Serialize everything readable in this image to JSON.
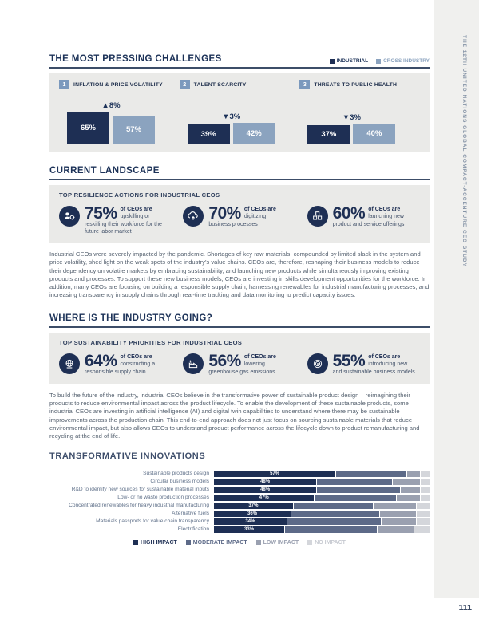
{
  "page": {
    "side_label": "THE 12TH UNITED NATIONS GLOBAL COMPACT-ACCENTURE CEO STUDY",
    "number": "111"
  },
  "colors": {
    "industrial_navy": "#1e2f54",
    "cross_industry_blue": "#8ba3bf",
    "panel_background": "#eaeae8",
    "side_strip": "#f0f0ee",
    "moderate_impact": "#5d6a88",
    "low_impact": "#9aa0b0",
    "no_impact": "#d4d6db"
  },
  "current_landscape": {
    "title": "CURRENT LANDSCAPE",
    "panel_title": "TOP RESILIENCE ACTIONS FOR INDUSTRIAL CEOS",
    "stats": [
      {
        "icon": "workforce-icon",
        "value": "75%",
        "lead": "of CEOs are",
        "lead_rest": "upskilling or",
        "desc": "reskilling their workforce for the future labor market"
      },
      {
        "icon": "digitization-icon",
        "value": "70%",
        "lead": "of CEOs are",
        "lead_rest": "digitizing",
        "desc": "business processes"
      },
      {
        "icon": "product-launch-icon",
        "value": "60%",
        "lead": "of CEOs are",
        "lead_rest": "launching new",
        "desc": "product and service offerings"
      }
    ],
    "paragraph": "Industrial CEOs were severely impacted by the pandemic. Shortages of key raw materials, compounded by limited slack in the system and price volatility, shed light on the weak spots of the industry’s value chains. CEOs are, therefore, reshaping their business models to reduce their dependency on volatile markets by embracing sustainability, and launching new products while simultaneously improving existing products and processes. To support these new business models, CEOs are investing in skills development opportunities for the workforce. In addition, many CEOs are focusing on building a responsible supply chain, harnessing renewables for industrial manufacturing processes, and increasing transparency in supply chains through real-time tracking and data monitoring to predict capacity issues."
  },
  "industry_direction": {
    "title": "WHERE IS THE INDUSTRY GOING?",
    "panel_title": "TOP SUSTAINABILITY PRIORITIES FOR INDUSTRIAL CEOS",
    "stats": [
      {
        "icon": "supply-chain-icon",
        "value": "64%",
        "lead": "of CEOs are",
        "lead_rest": "constructing a",
        "desc": "responsible supply chain"
      },
      {
        "icon": "emissions-icon",
        "value": "56%",
        "lead": "of CEOs are",
        "lead_rest": "lowering",
        "desc": "greenhouse gas emissions"
      },
      {
        "icon": "business-model-icon",
        "value": "55%",
        "lead": "of CEOs are",
        "lead_rest": "introducing new",
        "desc": "and sustainable business models"
      }
    ],
    "paragraph": "To build the future of the industry, industrial CEOs believe in the transformative power of sustainable product design – reimagining their products to reduce environmental impact across the product lifecycle. To enable the development of these sustainable products, some industrial CEOs are investing in artificial intelligence (AI) and digital twin capabilities to understand where there may be sustainable improvements across the production chain. This end-to-end approach does not just focus on sourcing sustainable materials that reduce environmental impact, but also allows CEOs to understand product performance across the lifecycle down to product remanufacturing and recycling at the end of life."
  },
  "chart_data": [
    {
      "type": "bar",
      "title": "THE MOST PRESSING CHALLENGES",
      "legend_position": "top-right",
      "ranks": [
        "1",
        "2",
        "3"
      ],
      "categories": [
        "INFLATION & PRICE VOLATILITY",
        "TALENT SCARCITY",
        "THREATS TO PUBLIC HEALTH"
      ],
      "deltas": [
        "▲8%",
        "▼3%",
        "▼3%"
      ],
      "series": [
        {
          "name": "INDUSTRIAL",
          "color": "#1e2f54",
          "values": [
            65,
            39,
            37
          ]
        },
        {
          "name": "CROSS INDUSTRY",
          "color": "#8ba3bf",
          "values": [
            57,
            42,
            40
          ]
        }
      ],
      "value_labels": [
        [
          "65%",
          "57%"
        ],
        [
          "39%",
          "42%"
        ],
        [
          "37%",
          "40%"
        ]
      ],
      "ylim": [
        0,
        100
      ]
    },
    {
      "type": "bar",
      "orientation": "horizontal-stacked",
      "title": "TRANSFORMATIVE INNOVATIONS",
      "legend_position": "bottom-center",
      "categories": [
        "Sustainable products design",
        "Circular business models",
        "R&D to identify new sources for sustainable material inputs",
        "Low- or no waste production processes",
        "Concentrated renewables for heavy industrial manufacturing",
        "Alternative fuels",
        "Materials passports for value chain transparency",
        "Electrification"
      ],
      "series": [
        {
          "name": "HIGH IMPACT",
          "color": "#1e2f54",
          "values": [
            57,
            48,
            48,
            47,
            37,
            36,
            34,
            33
          ]
        },
        {
          "name": "MODERATE IMPACT",
          "color": "#5d6a88",
          "values": [
            33,
            35,
            39,
            38,
            37,
            41,
            44,
            43
          ]
        },
        {
          "name": "LOW IMPACT",
          "color": "#9aa0b0",
          "values": [
            6,
            13,
            9,
            11,
            20,
            17,
            16,
            17
          ]
        },
        {
          "name": "NO IMPACT",
          "color": "#d4d6db",
          "values": [
            4,
            4,
            4,
            4,
            6,
            6,
            6,
            7
          ]
        }
      ],
      "high_labels": [
        "57%",
        "48%",
        "48%",
        "47%",
        "37%",
        "36%",
        "34%",
        "33%"
      ],
      "xlim": [
        0,
        100
      ]
    }
  ]
}
